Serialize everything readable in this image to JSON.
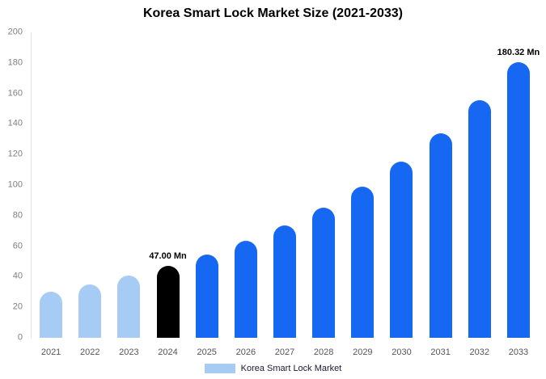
{
  "chart_data": {
    "type": "bar",
    "title": "Korea Smart Lock Market Size (2021-2033)",
    "categories": [
      "2021",
      "2022",
      "2023",
      "2024",
      "2025",
      "2026",
      "2027",
      "2028",
      "2029",
      "2030",
      "2031",
      "2032",
      "2033"
    ],
    "values": [
      30,
      34.8,
      40.5,
      47,
      54.6,
      63.4,
      73.6,
      85.4,
      99.2,
      115.2,
      133.8,
      155.3,
      180.32
    ],
    "bar_colors": [
      "#a6cbf5",
      "#a6cbf5",
      "#a6cbf5",
      "#000000",
      "#1668f2",
      "#1668f2",
      "#1668f2",
      "#1668f2",
      "#1668f2",
      "#1668f2",
      "#1668f2",
      "#1668f2",
      "#1668f2"
    ],
    "annotations": [
      {
        "category": "2024",
        "text": "47.00 Mn"
      },
      {
        "category": "2033",
        "text": "180.32 Mn"
      }
    ],
    "xlabel": "",
    "ylabel": "",
    "ylim": [
      0,
      200
    ],
    "yticks": [
      0,
      20,
      40,
      60,
      80,
      100,
      120,
      140,
      160,
      180,
      200
    ],
    "grid": false,
    "legend_position": "bottom",
    "legend_entries": [
      "Korea Smart Lock Market"
    ],
    "legend_swatch_color": "#a6cbf5",
    "tick_color": "#7f7f7f",
    "annotation_color": "#000000"
  }
}
